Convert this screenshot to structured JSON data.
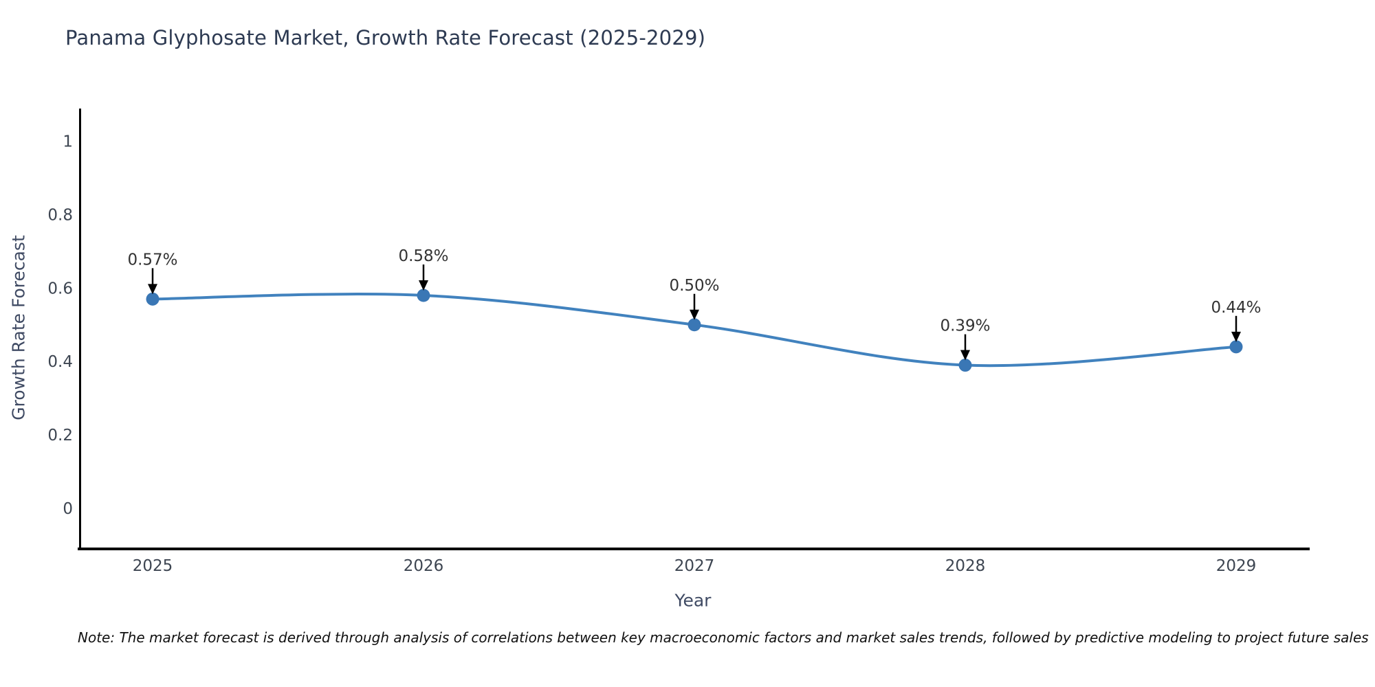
{
  "chart_data": {
    "type": "line",
    "title": "Panama Glyphosate Market, Growth Rate Forecast (2025-2029)",
    "xlabel": "Year",
    "ylabel": "Growth Rate Forecast",
    "note": "Note: The market forecast is derived through analysis of correlations between key macroeconomic factors and market sales trends, followed by predictive modeling to project future sales",
    "categories": [
      "2025",
      "2026",
      "2027",
      "2028",
      "2029"
    ],
    "values": [
      0.57,
      0.58,
      0.5,
      0.39,
      0.44
    ],
    "point_labels": [
      "0.57%",
      "0.58%",
      "0.50%",
      "0.39%",
      "0.44%"
    ],
    "yticks": [
      {
        "value": 1,
        "label": "1"
      },
      {
        "value": 0.8,
        "label": "0.8"
      },
      {
        "value": 0.6,
        "label": "0.6"
      },
      {
        "value": 0.4,
        "label": "0.4"
      },
      {
        "value": 0.2,
        "label": "0.2"
      },
      {
        "value": 0,
        "label": "0"
      }
    ],
    "ylim": [
      -0.11,
      1.09
    ],
    "grid": false,
    "legend": false,
    "line_shape": "spline",
    "colors": {
      "line": "#4182be",
      "marker": "#3a77b5",
      "axis": "#000000",
      "annotation_arrow": "#000000"
    }
  }
}
